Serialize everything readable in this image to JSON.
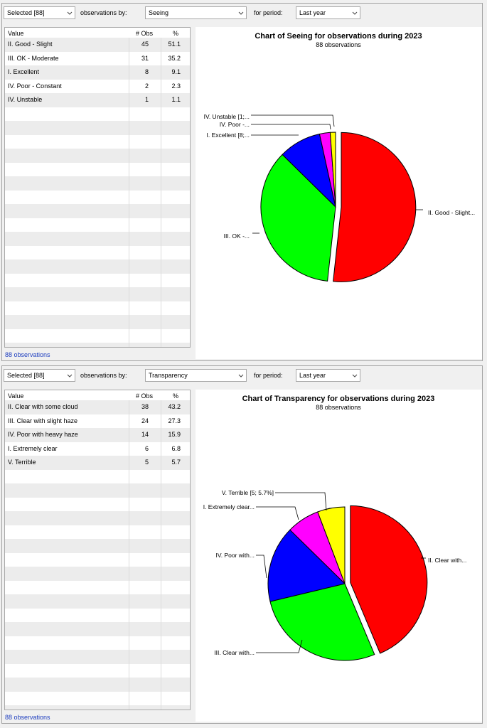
{
  "panels": [
    {
      "selection": "Selected [88]",
      "observations_by_label": "observations by:",
      "observations_by_value": "Seeing",
      "period_label": "for period:",
      "period_value": "Last year",
      "table": {
        "columns": [
          "Value",
          "# Obs",
          "%"
        ],
        "rows": [
          [
            "II. Good - Slight",
            "45",
            "51.1"
          ],
          [
            "III. OK - Moderate",
            "31",
            "35.2"
          ],
          [
            "I. Excellent",
            "8",
            "9.1"
          ],
          [
            "IV. Poor - Constant",
            "2",
            "2.3"
          ],
          [
            "IV. Unstable",
            "1",
            "1.1"
          ]
        ]
      },
      "footer": "88 observations",
      "colors": [
        "#ff0000",
        "#00ff00",
        "#0000ff",
        "#ff00ff",
        "#ffff00"
      ]
    },
    {
      "selection": "Selected [88]",
      "observations_by_label": "observations by:",
      "observations_by_value": "Transparency",
      "period_label": "for period:",
      "period_value": "Last year",
      "table": {
        "columns": [
          "Value",
          "# Obs",
          "%"
        ],
        "rows": [
          [
            "II. Clear with some cloud",
            "38",
            "43.2"
          ],
          [
            "III. Clear with slight haze",
            "24",
            "27.3"
          ],
          [
            "IV. Poor with heavy haze",
            "14",
            "15.9"
          ],
          [
            "I. Extremely clear",
            "6",
            "6.8"
          ],
          [
            "V. Terrible",
            "5",
            "5.7"
          ]
        ]
      },
      "footer": "88 observations",
      "colors": [
        "#ff0000",
        "#00ff00",
        "#0000ff",
        "#ff00ff",
        "#ffff00"
      ]
    }
  ],
  "chart_data": [
    {
      "type": "pie",
      "title": "Chart of Seeing for observations during 2023",
      "subtitle": "88 observations",
      "categories": [
        "II. Good - Slight",
        "III. OK - Moderate",
        "I. Excellent",
        "IV. Poor - Constant",
        "IV. Unstable"
      ],
      "values": [
        45,
        31,
        8,
        2,
        1
      ],
      "slice_labels": [
        "II. Good - Slight...",
        "III. OK -...",
        "I. Excellent [8;...",
        "IV. Poor -...",
        "IV. Unstable [1;..."
      ],
      "exploded_slice": 0
    },
    {
      "type": "pie",
      "title": "Chart of Transparency for observations during 2023",
      "subtitle": "88 observations",
      "categories": [
        "II. Clear with some cloud",
        "III. Clear with slight haze",
        "IV. Poor with heavy haze",
        "I. Extremely clear",
        "V. Terrible"
      ],
      "values": [
        38,
        24,
        14,
        6,
        5
      ],
      "slice_labels": [
        "II. Clear with...",
        "III. Clear with...",
        "IV. Poor with...",
        "I. Extremely clear...",
        "V. Terrible [5; 5.7%]"
      ],
      "exploded_slice": 0
    }
  ]
}
